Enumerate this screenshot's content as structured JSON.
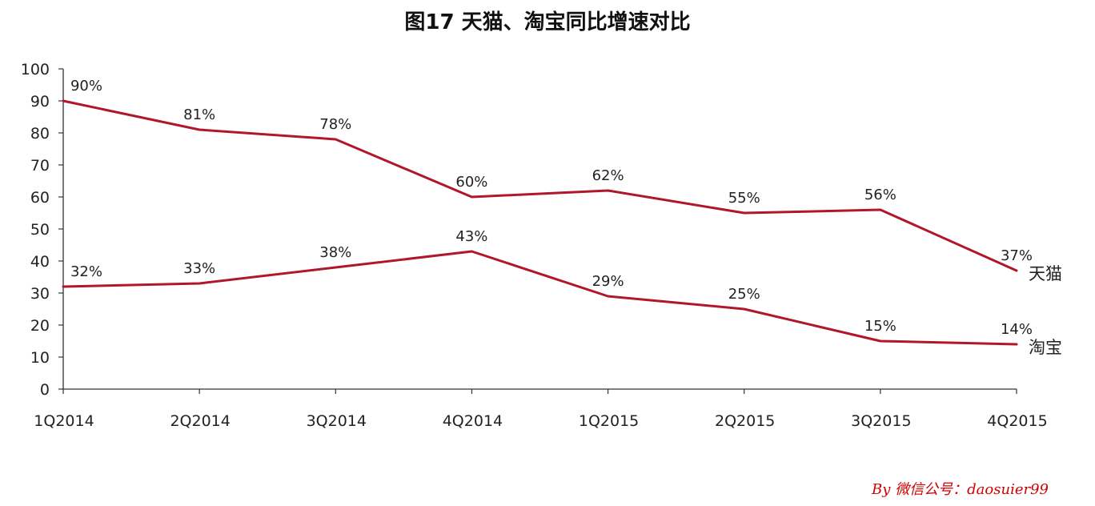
{
  "chart_data": {
    "type": "line",
    "title": "图17 天猫、淘宝同比增速对比",
    "xlabel": "",
    "ylabel": "",
    "ylim": [
      0,
      100
    ],
    "yticks": [
      "0",
      "10",
      "20",
      "30",
      "40",
      "50",
      "60",
      "70",
      "80",
      "90",
      "100"
    ],
    "categories": [
      "1Q2014",
      "2Q2014",
      "3Q2014",
      "4Q2014",
      "1Q2015",
      "2Q2015",
      "3Q2015",
      "4Q2015"
    ],
    "grid": false,
    "legend": "right, at line ends",
    "series": [
      {
        "name": "天猫",
        "values": [
          90,
          81,
          78,
          60,
          62,
          55,
          56,
          37
        ],
        "labels": [
          "90%",
          "81%",
          "78%",
          "60%",
          "62%",
          "55%",
          "56%",
          "37%"
        ],
        "color": "#b0182a"
      },
      {
        "name": "淘宝",
        "values": [
          32,
          33,
          38,
          43,
          29,
          25,
          15,
          14
        ],
        "labels": [
          "32%",
          "33%",
          "38%",
          "43%",
          "29%",
          "25%",
          "15%",
          "14%"
        ],
        "color": "#b0182a"
      }
    ]
  },
  "watermark": "By 微信公号：daosuier99"
}
